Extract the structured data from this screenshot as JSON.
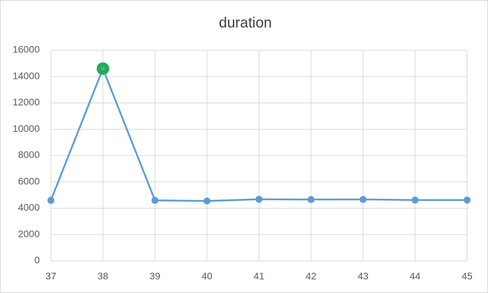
{
  "chart_data": {
    "type": "line",
    "title": "duration",
    "x": [
      37,
      38,
      39,
      40,
      41,
      42,
      43,
      44,
      45
    ],
    "series": [
      {
        "name": "duration",
        "color": "#5b9bd5",
        "values": [
          4600,
          14600,
          4600,
          4550,
          4680,
          4660,
          4670,
          4620,
          4620
        ]
      }
    ],
    "highlight_index": 1,
    "highlight_color": "#1db14b",
    "xlim": [
      37,
      45
    ],
    "xticks": [
      37,
      38,
      39,
      40,
      41,
      42,
      43,
      44,
      45
    ],
    "ylim": [
      0,
      16000
    ],
    "yticks": [
      0,
      2000,
      4000,
      6000,
      8000,
      10000,
      12000,
      14000,
      16000
    ],
    "grid": true
  }
}
